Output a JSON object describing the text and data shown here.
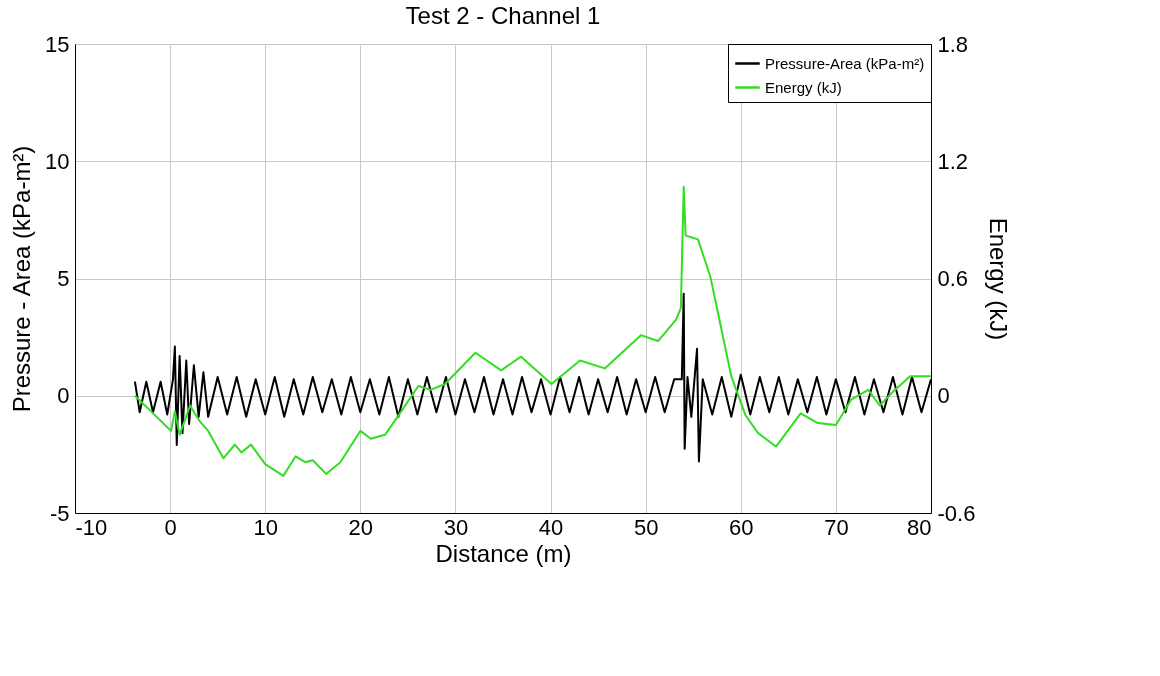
{
  "chart_data": {
    "type": "line",
    "title": "Test 2 - Channel 1",
    "xlabel": "Distance (m)",
    "ylabel": "Pressure - Area (kPa-m²)",
    "y2label": "Energy (kJ)",
    "xlim": [
      -10,
      80
    ],
    "xticks": [
      -10,
      0,
      10,
      20,
      30,
      40,
      50,
      60,
      70,
      80
    ],
    "ylim": [
      -5,
      15
    ],
    "yticks": [
      -5,
      0,
      5,
      10,
      15
    ],
    "y2lim": [
      -0.6,
      1.8
    ],
    "y2ticks": [
      -0.6,
      0,
      0.6,
      1.2,
      1.8
    ],
    "grid": true,
    "legend": "top right",
    "marker": "none",
    "line_style": "solid",
    "series": [
      {
        "name": "Pressure-Area (kPa-m²)",
        "color": "#000000",
        "x": [
          -3.7,
          -3.2,
          -2.5,
          -1.8,
          -1,
          -0.3,
          0.3,
          0.5,
          0.7,
          1.0,
          1.3,
          1.7,
          2.0,
          2.5,
          3,
          3.5,
          4,
          5,
          6,
          7,
          8,
          9,
          10,
          11,
          12,
          13,
          14,
          15,
          16,
          17,
          18,
          19,
          20,
          21,
          22,
          23,
          24,
          25,
          26,
          27,
          28,
          29,
          30,
          31,
          32,
          33,
          34,
          35,
          36,
          37,
          38,
          39,
          40,
          41,
          42,
          43,
          44,
          45,
          46,
          47,
          48,
          49,
          50,
          51,
          52,
          53,
          53.8,
          54.0,
          54.1,
          54.4,
          54.8,
          55.4,
          55.6,
          56,
          57,
          58,
          59,
          60,
          61,
          62,
          63,
          64,
          65,
          66,
          67,
          68,
          69,
          70,
          71,
          72,
          73,
          74,
          75,
          76,
          77,
          78,
          79,
          80
        ],
        "values": [
          0.6,
          -0.7,
          0.6,
          -0.7,
          0.6,
          -0.8,
          0.7,
          2.1,
          -2.1,
          1.7,
          -1.6,
          1.5,
          -1.2,
          1.3,
          -0.9,
          1.0,
          -0.9,
          0.8,
          -0.8,
          0.8,
          -0.9,
          0.7,
          -0.8,
          0.8,
          -0.9,
          0.7,
          -0.8,
          0.8,
          -0.7,
          0.7,
          -0.8,
          0.8,
          -0.7,
          0.7,
          -0.8,
          0.8,
          -0.9,
          0.7,
          -0.8,
          0.8,
          -0.7,
          0.8,
          -0.8,
          0.7,
          -0.7,
          0.8,
          -0.8,
          0.7,
          -0.8,
          0.8,
          -0.7,
          0.7,
          -0.8,
          0.8,
          -0.7,
          0.8,
          -0.8,
          0.7,
          -0.7,
          0.8,
          -0.8,
          0.7,
          -0.7,
          0.8,
          -0.7,
          0.7,
          0.7,
          4.35,
          -2.26,
          0.8,
          -0.9,
          2.0,
          -2.8,
          0.7,
          -0.8,
          0.8,
          -0.9,
          0.9,
          -0.8,
          0.8,
          -0.7,
          0.8,
          -0.8,
          0.7,
          -0.7,
          0.8,
          -0.8,
          0.7,
          -0.7,
          0.8,
          -0.8,
          0.7,
          -0.7,
          0.8,
          -0.8,
          0.8,
          -0.7,
          0.7
        ]
      },
      {
        "name": "Energy (kJ)",
        "color": "#33dd22",
        "axis": "y2",
        "x": [
          -3.7,
          -2.0,
          0.1,
          0.5,
          1.0,
          2.1,
          3.1,
          4.0,
          5.6,
          6.8,
          7.5,
          8.5,
          10.0,
          11.9,
          13.2,
          14.2,
          15.0,
          16.4,
          17.9,
          20.0,
          21.1,
          22.6,
          24.3,
          26.1,
          27.4,
          28.9,
          32.1,
          34.8,
          36.9,
          40.1,
          43.1,
          45.7,
          49.5,
          51.3,
          53.2,
          53.7,
          54.0,
          54.2,
          55.5,
          56.8,
          59.0,
          60.5,
          61.8,
          63.7,
          66.3,
          68.1,
          70.0,
          71.6,
          73.4,
          74.6,
          76.0,
          77.8,
          80
        ],
        "values": [
          0,
          -0.08,
          -0.18,
          -0.08,
          -0.2,
          -0.05,
          -0.13,
          -0.18,
          -0.32,
          -0.25,
          -0.29,
          -0.25,
          -0.35,
          -0.41,
          -0.31,
          -0.34,
          -0.33,
          -0.4,
          -0.34,
          -0.18,
          -0.22,
          -0.2,
          -0.08,
          0.05,
          0.03,
          0.06,
          0.22,
          0.13,
          0.2,
          0.06,
          0.18,
          0.14,
          0.31,
          0.28,
          0.39,
          0.45,
          1.07,
          0.82,
          0.8,
          0.61,
          0.1,
          -0.1,
          -0.19,
          -0.26,
          -0.09,
          -0.14,
          -0.15,
          -0.02,
          0.03,
          -0.05,
          0.02,
          0.1,
          0.1
        ]
      }
    ]
  }
}
